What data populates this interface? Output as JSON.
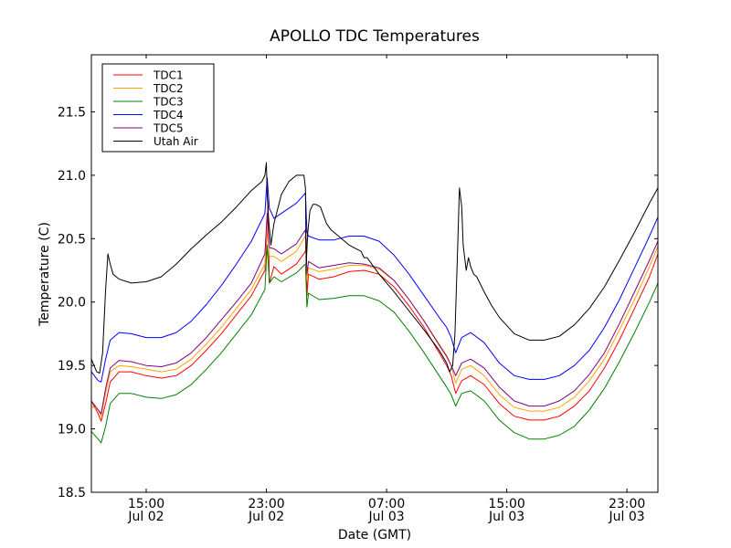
{
  "chart_data": {
    "type": "line",
    "title": "APOLLO TDC Temperatures",
    "xlabel": "Date (GMT)",
    "ylabel": "Temperature (C)",
    "x_unit": "hours since Jul 02 00:00 GMT",
    "xlim": [
      11.35,
      49.06
    ],
    "ylim": [
      18.5,
      21.95
    ],
    "grid": false,
    "legend_position": "top-left",
    "x_ticks": [
      {
        "value": 15,
        "time": "15:00",
        "date": "Jul 02"
      },
      {
        "value": 23,
        "time": "23:00",
        "date": "Jul 02"
      },
      {
        "value": 31,
        "time": "07:00",
        "date": "Jul 03"
      },
      {
        "value": 39,
        "time": "15:00",
        "date": "Jul 03"
      },
      {
        "value": 47,
        "time": "23:00",
        "date": "Jul 03"
      }
    ],
    "y_ticks": [
      {
        "value": 18.5,
        "label": "18.5"
      },
      {
        "value": 19.0,
        "label": "19.0"
      },
      {
        "value": 19.5,
        "label": "19.5"
      },
      {
        "value": 20.0,
        "label": "20.0"
      },
      {
        "value": 20.5,
        "label": "20.5"
      },
      {
        "value": 21.0,
        "label": "21.0"
      },
      {
        "value": 21.5,
        "label": "21.5"
      }
    ],
    "series": [
      {
        "name": "TDC1",
        "color": "#ff0000",
        "x": [
          11.35,
          11.8,
          12.0,
          12.3,
          12.6,
          13.2,
          14.0,
          15.0,
          16.0,
          17.0,
          18.0,
          19.0,
          20.0,
          21.0,
          22.0,
          22.9,
          23.05,
          23.1,
          23.2,
          23.5,
          24.0,
          25.0,
          25.6,
          25.65,
          25.7,
          25.8,
          26.5,
          27.5,
          28.5,
          29.5,
          30.5,
          31.5,
          32.5,
          33.5,
          34.5,
          35.0,
          35.3,
          35.6,
          36.0,
          36.6,
          37.5,
          38.5,
          39.5,
          40.5,
          41.5,
          42.5,
          43.5,
          44.5,
          45.5,
          46.5,
          47.5,
          48.5,
          49.06
        ],
        "y": [
          19.22,
          19.12,
          19.06,
          19.2,
          19.37,
          19.45,
          19.45,
          19.42,
          19.4,
          19.42,
          19.5,
          19.62,
          19.75,
          19.9,
          20.05,
          20.25,
          20.55,
          20.8,
          20.15,
          20.28,
          20.22,
          20.3,
          20.4,
          20.5,
          20.05,
          20.22,
          20.18,
          20.2,
          20.24,
          20.25,
          20.22,
          20.12,
          19.97,
          19.8,
          19.6,
          19.5,
          19.42,
          19.28,
          19.38,
          19.42,
          19.35,
          19.2,
          19.1,
          19.07,
          19.07,
          19.1,
          19.18,
          19.3,
          19.48,
          19.7,
          19.95,
          20.2,
          20.38
        ]
      },
      {
        "name": "TDC2",
        "color": "#ffa500",
        "x": [
          11.35,
          11.8,
          12.0,
          12.3,
          12.6,
          13.2,
          14.0,
          15.0,
          16.0,
          17.0,
          18.0,
          19.0,
          20.0,
          21.0,
          22.0,
          22.9,
          23.05,
          23.2,
          23.5,
          24.0,
          25.0,
          25.6,
          25.7,
          25.8,
          26.5,
          27.5,
          28.5,
          29.5,
          30.5,
          31.5,
          32.5,
          33.5,
          34.5,
          35.0,
          35.3,
          35.6,
          36.0,
          36.6,
          37.5,
          38.5,
          39.5,
          40.5,
          41.5,
          42.5,
          43.5,
          44.5,
          45.5,
          46.5,
          47.5,
          48.5,
          49.06
        ],
        "y": [
          19.18,
          19.15,
          19.1,
          19.28,
          19.45,
          19.5,
          19.49,
          19.47,
          19.45,
          19.47,
          19.55,
          19.67,
          19.8,
          19.95,
          20.1,
          20.3,
          20.62,
          20.36,
          20.36,
          20.32,
          20.4,
          20.52,
          20.17,
          20.27,
          20.24,
          20.26,
          20.29,
          20.29,
          20.26,
          20.17,
          20.02,
          19.85,
          19.67,
          19.58,
          19.5,
          19.36,
          19.47,
          19.5,
          19.42,
          19.27,
          19.17,
          19.14,
          19.14,
          19.17,
          19.25,
          19.38,
          19.55,
          19.78,
          20.02,
          20.28,
          20.44
        ]
      },
      {
        "name": "TDC3",
        "color": "#008000",
        "x": [
          11.35,
          11.8,
          12.0,
          12.3,
          12.6,
          13.2,
          14.0,
          15.0,
          16.0,
          17.0,
          18.0,
          19.0,
          20.0,
          21.0,
          22.0,
          22.9,
          23.05,
          23.2,
          23.5,
          24.0,
          25.0,
          25.6,
          25.7,
          25.8,
          26.5,
          27.5,
          28.5,
          29.5,
          30.5,
          31.5,
          32.5,
          33.5,
          34.5,
          35.0,
          35.3,
          35.6,
          36.0,
          36.6,
          37.5,
          38.5,
          39.5,
          40.5,
          41.5,
          42.5,
          43.5,
          44.5,
          45.5,
          46.5,
          47.5,
          48.5,
          49.06
        ],
        "y": [
          18.98,
          18.92,
          18.89,
          19.02,
          19.2,
          19.28,
          19.28,
          19.25,
          19.24,
          19.27,
          19.35,
          19.47,
          19.6,
          19.75,
          19.9,
          20.1,
          20.45,
          20.15,
          20.2,
          20.16,
          20.23,
          20.3,
          19.96,
          20.07,
          20.02,
          20.03,
          20.05,
          20.05,
          20.01,
          19.92,
          19.77,
          19.6,
          19.42,
          19.33,
          19.27,
          19.18,
          19.28,
          19.3,
          19.22,
          19.07,
          18.97,
          18.92,
          18.92,
          18.95,
          19.02,
          19.15,
          19.32,
          19.53,
          19.76,
          20.0,
          20.15
        ]
      },
      {
        "name": "TDC4",
        "color": "#0000ff",
        "x": [
          11.35,
          11.8,
          12.0,
          12.3,
          12.6,
          13.2,
          14.0,
          15.0,
          16.0,
          17.0,
          18.0,
          19.0,
          20.0,
          21.0,
          22.0,
          22.9,
          23.05,
          23.2,
          23.5,
          24.0,
          25.0,
          25.6,
          25.7,
          25.8,
          26.5,
          27.5,
          28.5,
          29.5,
          30.5,
          31.5,
          32.5,
          33.5,
          34.5,
          35.0,
          35.3,
          35.6,
          36.0,
          36.6,
          37.5,
          38.5,
          39.5,
          40.5,
          41.5,
          42.5,
          43.5,
          44.5,
          45.5,
          46.5,
          47.5,
          48.5,
          49.06
        ],
        "y": [
          19.45,
          19.38,
          19.37,
          19.55,
          19.7,
          19.76,
          19.75,
          19.72,
          19.72,
          19.76,
          19.85,
          19.98,
          20.13,
          20.3,
          20.48,
          20.7,
          20.98,
          20.74,
          20.66,
          20.7,
          20.78,
          20.86,
          20.55,
          20.52,
          20.49,
          20.49,
          20.52,
          20.52,
          20.48,
          20.37,
          20.22,
          20.05,
          19.88,
          19.8,
          19.72,
          19.6,
          19.72,
          19.76,
          19.68,
          19.52,
          19.42,
          19.39,
          19.39,
          19.42,
          19.5,
          19.62,
          19.8,
          20.02,
          20.27,
          20.52,
          20.67
        ]
      },
      {
        "name": "TDC5",
        "color": "#800080",
        "x": [
          11.35,
          11.8,
          12.0,
          12.3,
          12.6,
          13.2,
          14.0,
          15.0,
          16.0,
          17.0,
          18.0,
          19.0,
          20.0,
          21.0,
          22.0,
          22.9,
          23.05,
          23.2,
          23.5,
          24.0,
          25.0,
          25.6,
          25.7,
          25.8,
          26.5,
          27.5,
          28.5,
          29.5,
          30.5,
          31.5,
          32.5,
          33.5,
          34.5,
          35.0,
          35.3,
          35.6,
          36.0,
          36.6,
          37.5,
          38.5,
          39.5,
          40.5,
          41.5,
          42.5,
          43.5,
          44.5,
          45.5,
          46.5,
          47.5,
          48.5,
          49.06
        ],
        "y": [
          19.22,
          19.15,
          19.12,
          19.32,
          19.48,
          19.54,
          19.53,
          19.5,
          19.49,
          19.52,
          19.6,
          19.72,
          19.86,
          20.0,
          20.15,
          20.38,
          20.7,
          20.43,
          20.42,
          20.38,
          20.46,
          20.57,
          20.22,
          20.32,
          20.27,
          20.29,
          20.31,
          20.3,
          20.27,
          20.17,
          20.02,
          19.85,
          19.66,
          19.57,
          19.5,
          19.42,
          19.52,
          19.55,
          19.48,
          19.33,
          19.22,
          19.18,
          19.18,
          19.22,
          19.3,
          19.43,
          19.6,
          19.83,
          20.08,
          20.33,
          20.48
        ]
      },
      {
        "name": "Utah Air",
        "color": "#000000",
        "x": [
          11.35,
          11.7,
          11.9,
          12.1,
          12.3,
          12.45,
          12.6,
          12.8,
          13.2,
          14.0,
          15.0,
          16.0,
          17.0,
          18.0,
          19.0,
          20.0,
          21.0,
          22.0,
          22.7,
          22.9,
          23.0,
          23.05,
          23.15,
          23.3,
          23.5,
          24.0,
          24.5,
          25.0,
          25.5,
          25.6,
          25.65,
          25.75,
          25.9,
          26.1,
          26.3,
          26.6,
          27.0,
          27.3,
          27.8,
          28.5,
          29.3,
          29.5,
          29.7,
          30.5,
          31.5,
          32.5,
          33.5,
          34.5,
          35.0,
          35.2,
          35.4,
          35.55,
          35.7,
          35.85,
          36.0,
          36.1,
          36.3,
          36.45,
          36.6,
          36.8,
          37.0,
          37.5,
          38.0,
          38.5,
          39.5,
          40.5,
          41.5,
          42.5,
          43.5,
          44.5,
          45.5,
          46.5,
          47.5,
          48.5,
          49.06
        ],
        "y": [
          19.55,
          19.45,
          19.44,
          19.6,
          20.1,
          20.38,
          20.3,
          20.22,
          20.18,
          20.15,
          20.16,
          20.2,
          20.3,
          20.42,
          20.53,
          20.63,
          20.75,
          20.88,
          20.95,
          21.0,
          21.1,
          20.85,
          20.65,
          20.45,
          20.62,
          20.85,
          20.95,
          21.0,
          21.0,
          20.9,
          20.3,
          20.55,
          20.72,
          20.77,
          20.77,
          20.75,
          20.62,
          20.57,
          20.52,
          20.45,
          20.4,
          20.35,
          20.35,
          20.22,
          20.08,
          19.93,
          19.78,
          19.62,
          19.52,
          19.45,
          19.5,
          19.75,
          20.3,
          20.9,
          20.75,
          20.45,
          20.25,
          20.35,
          20.28,
          20.22,
          20.2,
          20.08,
          19.97,
          19.88,
          19.75,
          19.7,
          19.7,
          19.73,
          19.82,
          19.95,
          20.12,
          20.33,
          20.55,
          20.78,
          20.9
        ]
      }
    ]
  }
}
